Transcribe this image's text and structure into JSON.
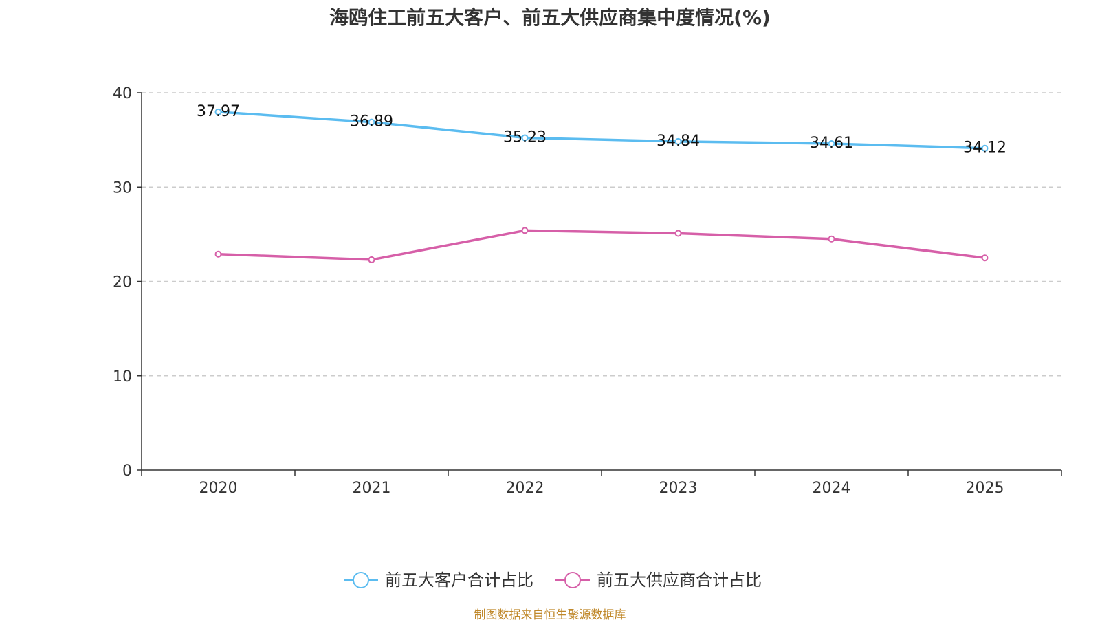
{
  "chart_data": {
    "type": "line",
    "title": "海鸥住工前五大客户、前五大供应商集中度情况(%)",
    "categories": [
      "2020",
      "2021",
      "2022",
      "2023",
      "2024",
      "2025"
    ],
    "ylim": [
      0,
      40
    ],
    "yticks": [
      0,
      10,
      20,
      30,
      40
    ],
    "grid": true,
    "legend_position": "bottom-center",
    "series": [
      {
        "name": "前五大客户合计占比",
        "color": "#5bbcf0",
        "values": [
          37.97,
          36.89,
          35.23,
          34.84,
          34.61,
          34.12
        ],
        "labels": [
          "37.97",
          "36.89",
          "35.23",
          "34.84",
          "34.61",
          "34.12"
        ]
      },
      {
        "name": "前五大供应商合计占比",
        "color": "#d65fa8",
        "values": [
          22.9,
          22.3,
          25.4,
          25.1,
          24.5,
          22.5
        ],
        "labels": []
      }
    ]
  },
  "source": "制图数据来自恒生聚源数据库"
}
